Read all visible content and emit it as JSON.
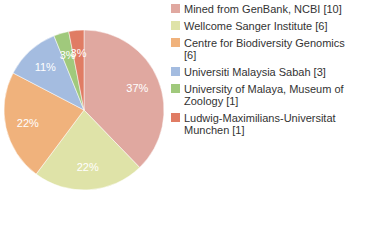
{
  "chart_data": {
    "type": "pie",
    "categories": [
      "Mined from GenBank, NCBI [10]",
      "Wellcome Sanger Institute [6]",
      "Centre for Biodiversity Genomics [6]",
      "Universiti Malaysia Sabah [3]",
      "University of Malaya, Museum of Zoology [1]",
      "Ludwig-Maximilians-Universitat Munchen [1]"
    ],
    "values": [
      37,
      22,
      22,
      11,
      3,
      3
    ],
    "value_labels": [
      "37%",
      "22%",
      "22%",
      "11%",
      "3%",
      "3%"
    ],
    "colors": [
      "#e0a8a0",
      "#dfe3a8",
      "#f0b27c",
      "#a4bce0",
      "#a0c97c",
      "#e07c64"
    ],
    "data_labels": true,
    "legend": "right"
  }
}
